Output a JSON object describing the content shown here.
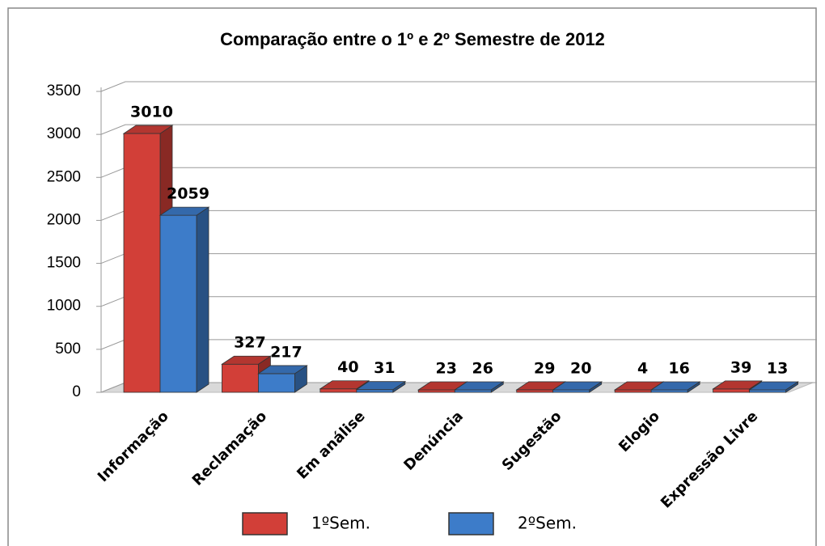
{
  "chart_data": {
    "type": "bar3d",
    "title": "Comparação entre o 1º e 2º Semestre de 2012",
    "categories": [
      "Informação",
      "Reclamação",
      "Em análise",
      "Denúncia",
      "Sugestão",
      "Elogio",
      "Expressão Livre"
    ],
    "series": [
      {
        "name": "1ºSem.",
        "color": "#d23f38",
        "values": [
          3010,
          327,
          40,
          23,
          29,
          4,
          39
        ]
      },
      {
        "name": "2ºSem.",
        "color": "#3d7cc9",
        "values": [
          2059,
          217,
          31,
          26,
          20,
          16,
          13
        ]
      }
    ],
    "ylim": [
      0,
      3500
    ],
    "yticks": [
      0,
      500,
      1000,
      1500,
      2000,
      2500,
      3000,
      3500
    ],
    "grid": true,
    "legend": "bottom"
  }
}
